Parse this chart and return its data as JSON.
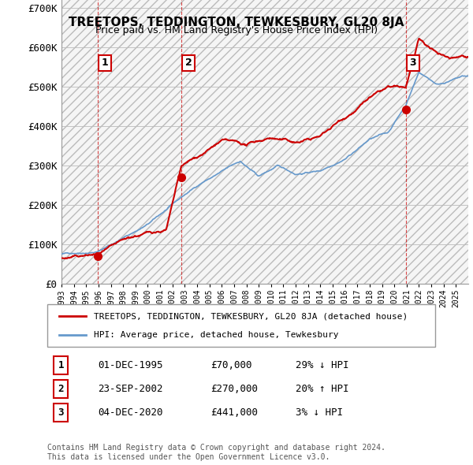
{
  "title": "TREETOPS, TEDDINGTON, TEWKESBURY, GL20 8JA",
  "subtitle": "Price paid vs. HM Land Registry's House Price Index (HPI)",
  "ylabel_ticks": [
    "£0",
    "£100K",
    "£200K",
    "£300K",
    "£400K",
    "£500K",
    "£600K",
    "£700K"
  ],
  "ytick_values": [
    0,
    100000,
    200000,
    300000,
    400000,
    500000,
    600000,
    700000
  ],
  "ylim": [
    0,
    720000
  ],
  "xlim_start": 1993.0,
  "xlim_end": 2026.0,
  "hpi_color": "#6699cc",
  "price_color": "#cc0000",
  "sale_marker_color": "#cc0000",
  "bg_hatch_color": "#dddddd",
  "grid_color": "#bbbbbb",
  "sales": [
    {
      "date_x": 1995.92,
      "price": 70000,
      "label": "1"
    },
    {
      "date_x": 2002.73,
      "price": 270000,
      "label": "2"
    },
    {
      "date_x": 2020.92,
      "price": 441000,
      "label": "3"
    }
  ],
  "sale_labels_info": [
    {
      "num": "1",
      "date": "01-DEC-1995",
      "price": "£70,000",
      "pct": "29%",
      "dir": "↓",
      "rel": "HPI"
    },
    {
      "num": "2",
      "date": "23-SEP-2002",
      "price": "£270,000",
      "pct": "20%",
      "dir": "↑",
      "rel": "HPI"
    },
    {
      "num": "3",
      "date": "04-DEC-2020",
      "price": "£441,000",
      "pct": "3%",
      "dir": "↓",
      "rel": "HPI"
    }
  ],
  "legend_label_price": "TREETOPS, TEDDINGTON, TEWKESBURY, GL20 8JA (detached house)",
  "legend_label_hpi": "HPI: Average price, detached house, Tewkesbury",
  "footer": "Contains HM Land Registry data © Crown copyright and database right 2024.\nThis data is licensed under the Open Government Licence v3.0.",
  "label_box_color": "#cc0000"
}
